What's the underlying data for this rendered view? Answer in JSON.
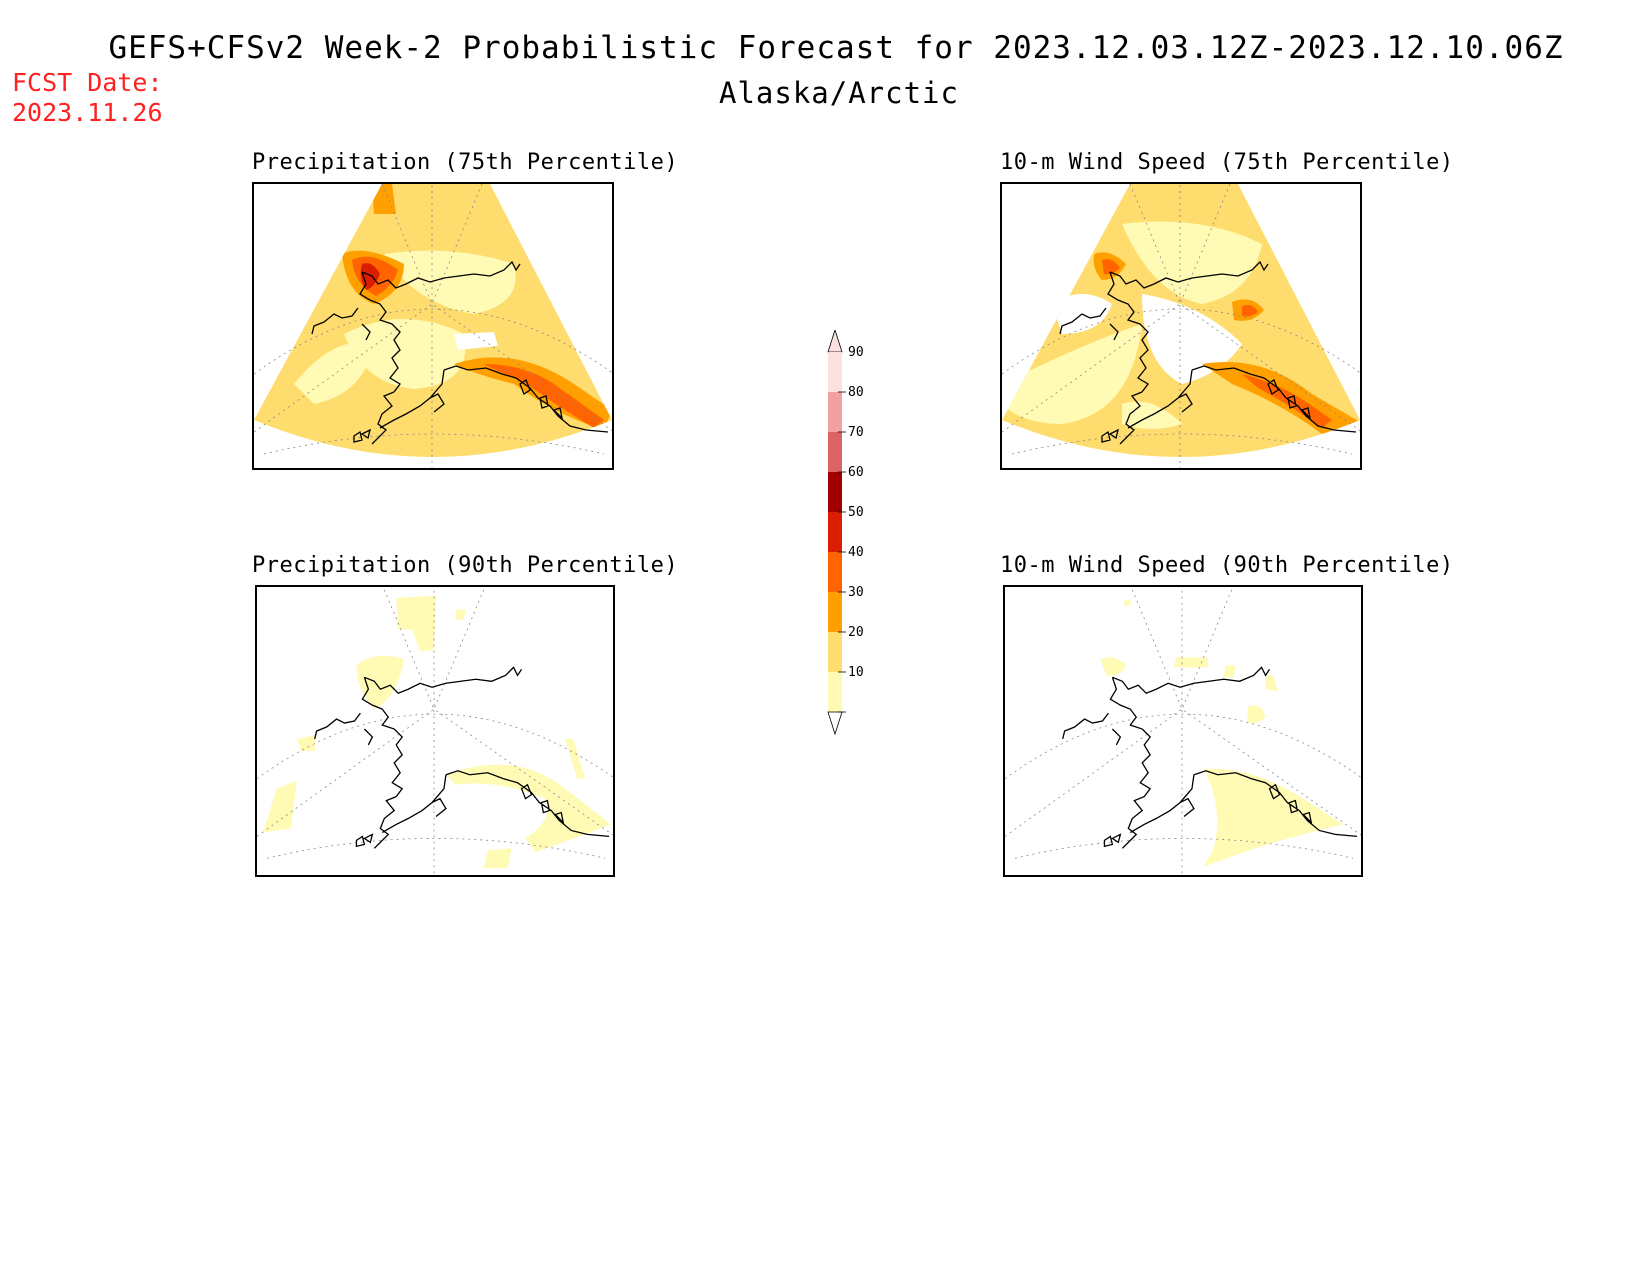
{
  "header": {
    "title": "GEFS+CFSv2 Week-2 Probabilistic Forecast for 2023.12.03.12Z-2023.12.10.06Z",
    "subtitle": "Alaska/Arctic",
    "fcst_label": "FCST Date:",
    "fcst_date": "2023.11.26"
  },
  "panels": [
    {
      "title": "Precipitation (75th Percentile)"
    },
    {
      "title": "10-m Wind Speed (75th Percentile)"
    },
    {
      "title": "Precipitation (90th Percentile)"
    },
    {
      "title": "10-m Wind Speed (90th Percentile)"
    }
  ],
  "colorbar": {
    "labels": [
      "90",
      "80",
      "70",
      "60",
      "50",
      "40",
      "30",
      "20",
      "10"
    ],
    "colors": [
      "#fde0e0",
      "#f2a0a0",
      "#dc6464",
      "#a00000",
      "#dc1e00",
      "#ff6400",
      "#ffa000",
      "#ffdc6e",
      "#fffab4"
    ]
  },
  "colors": {
    "fcst_text": "#ff2020",
    "background": "#ffffff"
  }
}
